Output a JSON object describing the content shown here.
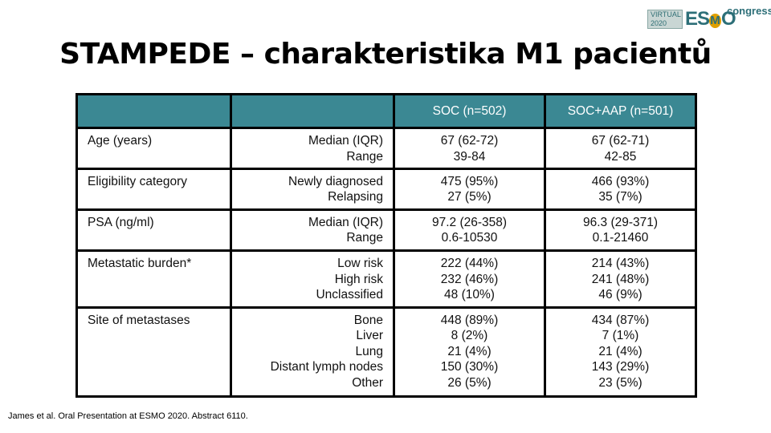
{
  "logo": {
    "badge_line1": "VIRTUAL",
    "badge_line2": "2020",
    "brand_pre": "ES",
    "brand_o": "M",
    "brand_post": "O",
    "tagline": "congress"
  },
  "title": "STAMPEDE – charakteristika M1 pacientů",
  "table": {
    "headers": [
      "",
      "",
      "SOC (n=502)",
      "SOC+AAP (n=501)"
    ],
    "rows": [
      {
        "label": "Age (years)",
        "stats": [
          "Median (IQR)",
          "Range"
        ],
        "soc": [
          "67 (62-72)",
          "39-84"
        ],
        "soc_aap": [
          "67 (62-71)",
          "42-85"
        ]
      },
      {
        "label": "Eligibility category",
        "stats": [
          "Newly diagnosed",
          "Relapsing"
        ],
        "soc": [
          "475 (95%)",
          "27 (5%)"
        ],
        "soc_aap": [
          "466 (93%)",
          "35 (7%)"
        ]
      },
      {
        "label": "PSA (ng/ml)",
        "stats": [
          "Median (IQR)",
          "Range"
        ],
        "soc": [
          "97.2 (26-358)",
          "0.6-10530"
        ],
        "soc_aap": [
          "96.3 (29-371)",
          "0.1-21460"
        ]
      },
      {
        "label": "Metastatic burden*",
        "stats": [
          "Low risk",
          "High risk",
          "Unclassified"
        ],
        "soc": [
          "222 (44%)",
          "232 (46%)",
          "48 (10%)"
        ],
        "soc_aap": [
          "214 (43%)",
          "241 (48%)",
          "46 (9%)"
        ]
      },
      {
        "label": "Site of metastases",
        "stats": [
          "Bone",
          "Liver",
          "Lung",
          "Distant lymph nodes",
          "Other"
        ],
        "soc": [
          "448 (89%)",
          "8 (2%)",
          "21 (4%)",
          "150 (30%)",
          "26 (5%)"
        ],
        "soc_aap": [
          "434 (87%)",
          "7 (1%)",
          "21 (4%)",
          "143 (29%)",
          "23 (5%)"
        ]
      }
    ]
  },
  "footnote": "James et al. Oral Presentation at ESMO 2020. Abstract  6110."
}
